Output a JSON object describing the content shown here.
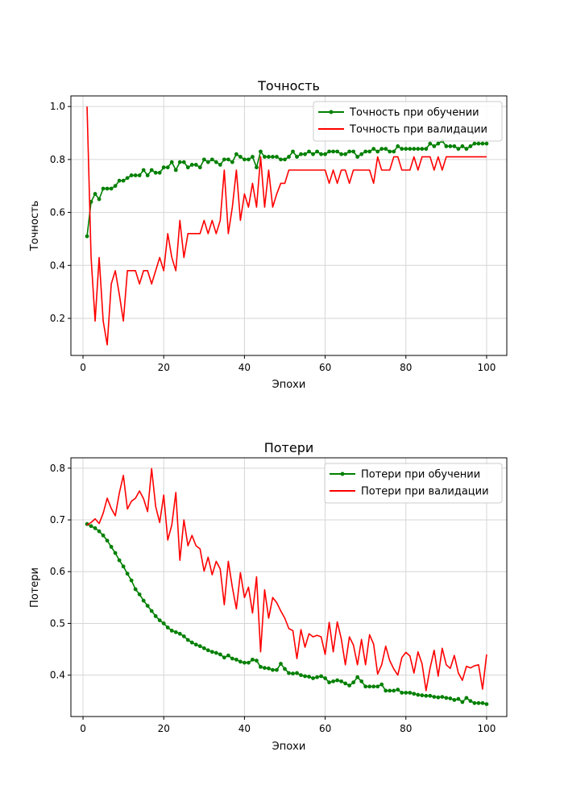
{
  "chart_data": [
    {
      "type": "line",
      "title": "Точность",
      "xlabel": "Эпохи",
      "ylabel": "Точность",
      "xlim": [
        -3,
        105
      ],
      "ylim": [
        0.06,
        1.04
      ],
      "xticks": [
        0,
        20,
        40,
        60,
        80,
        100
      ],
      "yticks": [
        0.2,
        0.4,
        0.6,
        0.8,
        1.0
      ],
      "ytick_labels": [
        "0.2",
        "0.4",
        "0.6",
        "0.8",
        "1.0"
      ],
      "grid": true,
      "legend_position": "top-right",
      "series": [
        {
          "name": "Точность при обучении",
          "color": "#008000",
          "marker": "circle",
          "x": [
            1,
            2,
            3,
            4,
            5,
            6,
            7,
            8,
            9,
            10,
            11,
            12,
            13,
            14,
            15,
            16,
            17,
            18,
            19,
            20,
            21,
            22,
            23,
            24,
            25,
            26,
            27,
            28,
            29,
            30,
            31,
            32,
            33,
            34,
            35,
            36,
            37,
            38,
            39,
            40,
            41,
            42,
            43,
            44,
            45,
            46,
            47,
            48,
            49,
            50,
            51,
            52,
            53,
            54,
            55,
            56,
            57,
            58,
            59,
            60,
            61,
            62,
            63,
            64,
            65,
            66,
            67,
            68,
            69,
            70,
            71,
            72,
            73,
            74,
            75,
            76,
            77,
            78,
            79,
            80,
            81,
            82,
            83,
            84,
            85,
            86,
            87,
            88,
            89,
            90,
            91,
            92,
            93,
            94,
            95,
            96,
            97,
            98,
            99,
            100
          ],
          "values": [
            0.51,
            0.64,
            0.67,
            0.65,
            0.69,
            0.69,
            0.69,
            0.7,
            0.72,
            0.72,
            0.73,
            0.74,
            0.74,
            0.74,
            0.76,
            0.74,
            0.76,
            0.75,
            0.75,
            0.77,
            0.77,
            0.79,
            0.76,
            0.79,
            0.79,
            0.77,
            0.78,
            0.78,
            0.77,
            0.8,
            0.79,
            0.8,
            0.79,
            0.78,
            0.8,
            0.8,
            0.79,
            0.82,
            0.81,
            0.8,
            0.8,
            0.81,
            0.77,
            0.83,
            0.81,
            0.81,
            0.81,
            0.81,
            0.8,
            0.8,
            0.81,
            0.83,
            0.81,
            0.82,
            0.82,
            0.83,
            0.82,
            0.83,
            0.82,
            0.82,
            0.83,
            0.83,
            0.83,
            0.82,
            0.82,
            0.83,
            0.83,
            0.81,
            0.82,
            0.83,
            0.83,
            0.84,
            0.83,
            0.84,
            0.84,
            0.83,
            0.83,
            0.85,
            0.84,
            0.84,
            0.84,
            0.84,
            0.84,
            0.84,
            0.84,
            0.86,
            0.85,
            0.86,
            0.87,
            0.85,
            0.85,
            0.85,
            0.84,
            0.85,
            0.84,
            0.85,
            0.86,
            0.86,
            0.86,
            0.86
          ]
        },
        {
          "name": "Точность при валидации",
          "color": "#ff0000",
          "marker": "none",
          "x": [
            1,
            2,
            3,
            4,
            5,
            6,
            7,
            8,
            9,
            10,
            11,
            12,
            13,
            14,
            15,
            16,
            17,
            18,
            19,
            20,
            21,
            22,
            23,
            24,
            25,
            26,
            27,
            28,
            29,
            30,
            31,
            32,
            33,
            34,
            35,
            36,
            37,
            38,
            39,
            40,
            41,
            42,
            43,
            44,
            45,
            46,
            47,
            48,
            49,
            50,
            51,
            52,
            53,
            54,
            55,
            56,
            57,
            58,
            59,
            60,
            61,
            62,
            63,
            64,
            65,
            66,
            67,
            68,
            69,
            70,
            71,
            72,
            73,
            74,
            75,
            76,
            77,
            78,
            79,
            80,
            81,
            82,
            83,
            84,
            85,
            86,
            87,
            88,
            89,
            90,
            91,
            92,
            93,
            94,
            95,
            96,
            97,
            98,
            99,
            100
          ],
          "values": [
            1.0,
            0.43,
            0.19,
            0.43,
            0.19,
            0.1,
            0.33,
            0.38,
            0.29,
            0.19,
            0.38,
            0.38,
            0.38,
            0.33,
            0.38,
            0.38,
            0.33,
            0.38,
            0.43,
            0.38,
            0.52,
            0.43,
            0.38,
            0.57,
            0.43,
            0.52,
            0.52,
            0.52,
            0.52,
            0.57,
            0.52,
            0.57,
            0.52,
            0.57,
            0.76,
            0.52,
            0.62,
            0.76,
            0.57,
            0.67,
            0.62,
            0.71,
            0.62,
            0.81,
            0.62,
            0.76,
            0.62,
            0.67,
            0.71,
            0.71,
            0.76,
            0.76,
            0.76,
            0.76,
            0.76,
            0.76,
            0.76,
            0.76,
            0.76,
            0.76,
            0.71,
            0.76,
            0.71,
            0.76,
            0.76,
            0.71,
            0.76,
            0.76,
            0.76,
            0.76,
            0.76,
            0.71,
            0.81,
            0.76,
            0.76,
            0.76,
            0.81,
            0.81,
            0.76,
            0.76,
            0.76,
            0.81,
            0.76,
            0.81,
            0.81,
            0.81,
            0.76,
            0.81,
            0.76,
            0.81,
            0.81,
            0.81,
            0.81,
            0.81,
            0.81,
            0.81,
            0.81,
            0.81,
            0.81,
            0.81
          ]
        }
      ]
    },
    {
      "type": "line",
      "title": "Потери",
      "xlabel": "Эпохи",
      "ylabel": "Потери",
      "xlim": [
        -3,
        105
      ],
      "ylim": [
        0.32,
        0.82
      ],
      "xticks": [
        0,
        20,
        40,
        60,
        80,
        100
      ],
      "yticks": [
        0.4,
        0.5,
        0.6,
        0.7,
        0.8
      ],
      "ytick_labels": [
        "0.4",
        "0.5",
        "0.6",
        "0.7",
        "0.8"
      ],
      "grid": true,
      "legend_position": "top-right",
      "series": [
        {
          "name": "Потери при обучении",
          "color": "#008000",
          "marker": "circle",
          "x": [
            1,
            2,
            3,
            4,
            5,
            6,
            7,
            8,
            9,
            10,
            11,
            12,
            13,
            14,
            15,
            16,
            17,
            18,
            19,
            20,
            21,
            22,
            23,
            24,
            25,
            26,
            27,
            28,
            29,
            30,
            31,
            32,
            33,
            34,
            35,
            36,
            37,
            38,
            39,
            40,
            41,
            42,
            43,
            44,
            45,
            46,
            47,
            48,
            49,
            50,
            51,
            52,
            53,
            54,
            55,
            56,
            57,
            58,
            59,
            60,
            61,
            62,
            63,
            64,
            65,
            66,
            67,
            68,
            69,
            70,
            71,
            72,
            73,
            74,
            75,
            76,
            77,
            78,
            79,
            80,
            81,
            82,
            83,
            84,
            85,
            86,
            87,
            88,
            89,
            90,
            91,
            92,
            93,
            94,
            95,
            96,
            97,
            98,
            99,
            100
          ],
          "values": [
            0.692,
            0.688,
            0.684,
            0.678,
            0.67,
            0.66,
            0.648,
            0.636,
            0.622,
            0.61,
            0.596,
            0.583,
            0.566,
            0.556,
            0.544,
            0.534,
            0.524,
            0.514,
            0.506,
            0.5,
            0.492,
            0.486,
            0.483,
            0.48,
            0.475,
            0.468,
            0.463,
            0.459,
            0.456,
            0.452,
            0.448,
            0.445,
            0.443,
            0.44,
            0.434,
            0.438,
            0.432,
            0.43,
            0.426,
            0.424,
            0.424,
            0.43,
            0.428,
            0.416,
            0.414,
            0.413,
            0.41,
            0.41,
            0.422,
            0.412,
            0.404,
            0.403,
            0.404,
            0.4,
            0.398,
            0.397,
            0.394,
            0.396,
            0.398,
            0.394,
            0.386,
            0.388,
            0.39,
            0.388,
            0.384,
            0.38,
            0.386,
            0.396,
            0.388,
            0.378,
            0.378,
            0.378,
            0.378,
            0.382,
            0.37,
            0.37,
            0.37,
            0.372,
            0.366,
            0.366,
            0.366,
            0.364,
            0.362,
            0.361,
            0.36,
            0.36,
            0.358,
            0.357,
            0.358,
            0.356,
            0.355,
            0.352,
            0.354,
            0.348,
            0.356,
            0.35,
            0.346,
            0.346,
            0.346,
            0.344
          ]
        },
        {
          "name": "Потери при валидации",
          "color": "#ff0000",
          "marker": "none",
          "x": [
            1,
            2,
            3,
            4,
            5,
            6,
            7,
            8,
            9,
            10,
            11,
            12,
            13,
            14,
            15,
            16,
            17,
            18,
            19,
            20,
            21,
            22,
            23,
            24,
            25,
            26,
            27,
            28,
            29,
            30,
            31,
            32,
            33,
            34,
            35,
            36,
            37,
            38,
            39,
            40,
            41,
            42,
            43,
            44,
            45,
            46,
            47,
            48,
            49,
            50,
            51,
            52,
            53,
            54,
            55,
            56,
            57,
            58,
            59,
            60,
            61,
            62,
            63,
            64,
            65,
            66,
            67,
            68,
            69,
            70,
            71,
            72,
            73,
            74,
            75,
            76,
            77,
            78,
            79,
            80,
            81,
            82,
            83,
            84,
            85,
            86,
            87,
            88,
            89,
            90,
            91,
            92,
            93,
            94,
            95,
            96,
            97,
            98,
            99,
            100
          ],
          "values": [
            0.69,
            0.695,
            0.702,
            0.693,
            0.713,
            0.742,
            0.722,
            0.708,
            0.752,
            0.786,
            0.721,
            0.736,
            0.742,
            0.756,
            0.741,
            0.716,
            0.799,
            0.726,
            0.695,
            0.748,
            0.661,
            0.69,
            0.753,
            0.622,
            0.7,
            0.65,
            0.67,
            0.65,
            0.644,
            0.601,
            0.628,
            0.594,
            0.62,
            0.605,
            0.536,
            0.62,
            0.57,
            0.528,
            0.598,
            0.55,
            0.57,
            0.52,
            0.59,
            0.445,
            0.565,
            0.51,
            0.55,
            0.54,
            0.524,
            0.51,
            0.49,
            0.486,
            0.432,
            0.488,
            0.454,
            0.48,
            0.474,
            0.477,
            0.474,
            0.44,
            0.502,
            0.445,
            0.503,
            0.47,
            0.42,
            0.474,
            0.458,
            0.42,
            0.469,
            0.42,
            0.478,
            0.46,
            0.402,
            0.42,
            0.456,
            0.428,
            0.412,
            0.4,
            0.434,
            0.444,
            0.437,
            0.404,
            0.445,
            0.422,
            0.37,
            0.414,
            0.448,
            0.398,
            0.452,
            0.42,
            0.413,
            0.438,
            0.404,
            0.39,
            0.417,
            0.414,
            0.418,
            0.42,
            0.373,
            0.44
          ]
        }
      ]
    }
  ]
}
